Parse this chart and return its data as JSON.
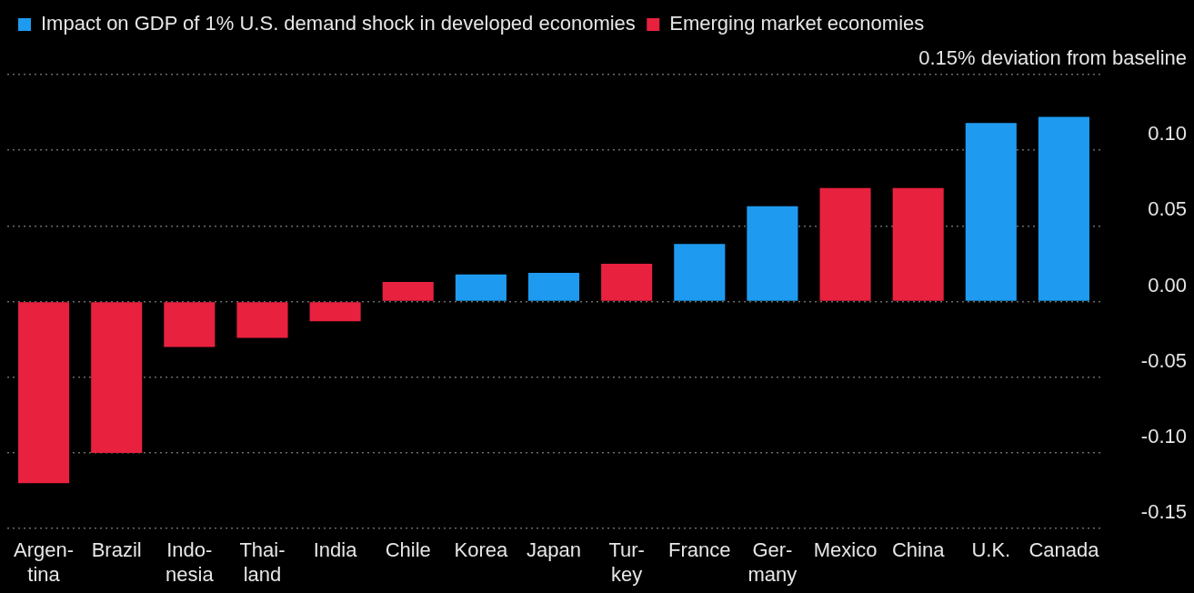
{
  "chart_data": {
    "type": "bar",
    "categories": [
      "Argen-\ntina",
      "Brazil",
      "Indo-\nnesia",
      "Thai-\nland",
      "India",
      "Chile",
      "Korea",
      "Japan",
      "Tur-\nkey",
      "France",
      "Ger-\nmany",
      "Mexico",
      "China",
      "U.K.",
      "Canada"
    ],
    "series": [
      {
        "name": "Impact on GDP of 1% U.S. demand shock in developed economies",
        "color": "#1e9bf0",
        "values": [
          null,
          null,
          null,
          null,
          null,
          null,
          0.018,
          0.019,
          null,
          0.038,
          0.063,
          null,
          null,
          0.118,
          0.122
        ]
      },
      {
        "name": "Emerging market economies",
        "color": "#e8213f",
        "values": [
          -0.12,
          -0.1,
          -0.03,
          -0.024,
          -0.013,
          0.013,
          null,
          null,
          0.025,
          null,
          null,
          0.075,
          0.075,
          null,
          null
        ]
      }
    ],
    "ylim": [
      -0.15,
      0.15
    ],
    "yticks": [
      {
        "value": -0.15,
        "label": "-0.15"
      },
      {
        "value": -0.1,
        "label": "-0.10"
      },
      {
        "value": -0.05,
        "label": "-0.05"
      },
      {
        "value": 0,
        "label": "0.00"
      },
      {
        "value": 0.05,
        "label": "0.05"
      },
      {
        "value": 0.1,
        "label": "0.10"
      },
      {
        "value": 0.15,
        "label": "0.15% deviation from baseline"
      }
    ],
    "grid": "y",
    "legend": "top left"
  }
}
